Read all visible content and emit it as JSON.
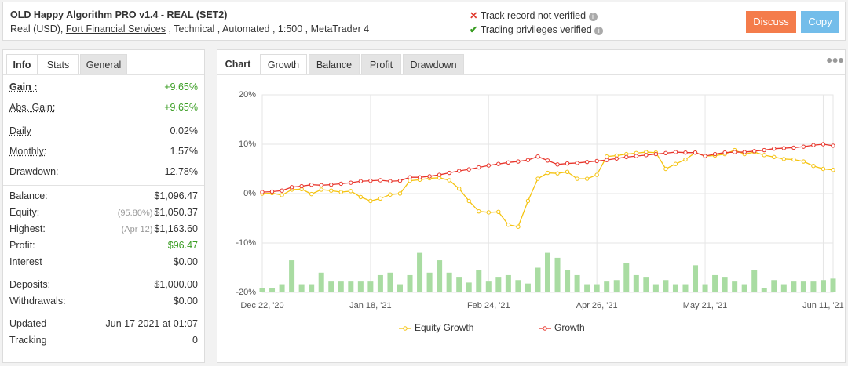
{
  "header": {
    "title": "OLD Happy Algorithm PRO v1.4 - REAL (SET2)",
    "account": [
      "Real (USD),",
      "Fort Financial Services",
      ", Technical , Automated , 1:500 , MetaTrader 4"
    ],
    "status": [
      "Track record not verified",
      "Trading privileges verified"
    ],
    "buttons": [
      "Discuss",
      "Copy"
    ]
  },
  "stats": {
    "tabs": [
      "Info",
      "Stats",
      "General"
    ],
    "groups": [
      [
        {
          "label": "Gain :",
          "value": "+9.65%",
          "color": "#3a9d23"
        },
        {
          "label": "Abs. Gain:",
          "value": "+9.65%",
          "color": "#3a9d23"
        }
      ],
      [
        {
          "label": "Daily",
          "value": "0.02%"
        },
        {
          "label": "Monthly:",
          "value": "1.57%"
        },
        {
          "label": "Drawdown:",
          "value": "12.78%"
        }
      ],
      [
        {
          "label": "Balance:",
          "value": "$1,096.47"
        },
        {
          "label": "Equity:",
          "note": "(95.80%)",
          "value": "$1,050.37"
        },
        {
          "label": "Highest:",
          "note": "(Apr 12)",
          "value": "$1,163.60"
        },
        {
          "label": "Profit:",
          "value": "$96.47",
          "color": "#3a9d23"
        },
        {
          "label": "Interest",
          "value": "$0.00"
        }
      ],
      [
        {
          "label": "Deposits:",
          "value": "$1,000.00"
        },
        {
          "label": "Withdrawals:",
          "value": "$0.00"
        }
      ],
      [
        {
          "label": "Updated",
          "value": "Jun 17 2021 at 01:07"
        },
        {
          "label": "Tracking",
          "value": "0"
        }
      ]
    ]
  },
  "chart_tabs": [
    "Chart",
    "Growth",
    "Balance",
    "Profit",
    "Drawdown"
  ],
  "chart_data": {
    "type": "line",
    "categories": [
      "Dec 22, '20",
      null,
      null,
      null,
      null,
      null,
      null,
      null,
      null,
      null,
      null,
      "Jan 18, '21",
      null,
      null,
      null,
      null,
      null,
      null,
      null,
      null,
      null,
      null,
      null,
      "Feb 24, '21",
      null,
      null,
      null,
      null,
      null,
      null,
      null,
      null,
      null,
      null,
      "Apr 26, '21",
      null,
      null,
      null,
      null,
      null,
      null,
      null,
      null,
      null,
      null,
      "May 21, '21",
      null,
      null,
      null,
      null,
      null,
      null,
      null,
      null,
      null,
      null,
      null,
      "Jun 11, '21",
      null
    ],
    "ylim": [
      -20,
      20
    ],
    "yticks": [
      {
        "value": -20,
        "label": "-20%"
      },
      {
        "value": -10,
        "label": "-10%"
      },
      {
        "value": 0,
        "label": "0%"
      },
      {
        "value": 10,
        "label": "10%"
      },
      {
        "value": 20,
        "label": "20%"
      }
    ],
    "grid": true,
    "series": [
      {
        "name": "Equity Growth",
        "color": "#f5c30f",
        "values": [
          0.0,
          0.1,
          -0.3,
          0.8,
          0.9,
          -0.1,
          0.8,
          0.6,
          0.3,
          0.5,
          -0.7,
          -1.5,
          -1.0,
          -0.2,
          0.0,
          2.6,
          2.8,
          3.1,
          3.2,
          2.7,
          1.0,
          -1.5,
          -3.6,
          -3.8,
          -3.7,
          -6.3,
          -6.7,
          -1.5,
          3.0,
          4.2,
          4.1,
          4.4,
          3.0,
          3.0,
          3.8,
          7.5,
          7.7,
          8.0,
          8.2,
          8.4,
          8.3,
          5.0,
          6.0,
          6.9,
          8.3,
          7.6,
          7.7,
          8.0,
          8.8,
          8.0,
          8.4,
          7.8,
          7.4,
          7.0,
          6.9,
          6.5,
          5.6,
          5.0,
          4.8
        ]
      },
      {
        "name": "Growth",
        "color": "#e8352b",
        "values": [
          0.3,
          0.4,
          0.6,
          1.3,
          1.5,
          1.8,
          1.7,
          1.8,
          2.0,
          2.2,
          2.5,
          2.6,
          2.7,
          2.5,
          2.6,
          3.3,
          3.3,
          3.5,
          3.8,
          4.2,
          4.6,
          4.9,
          5.3,
          5.7,
          6.0,
          6.3,
          6.5,
          6.8,
          7.5,
          6.7,
          5.9,
          6.1,
          6.2,
          6.4,
          6.6,
          6.8,
          7.1,
          7.4,
          7.6,
          7.8,
          8.0,
          8.2,
          8.4,
          8.3,
          8.3,
          7.6,
          8.0,
          8.3,
          8.4,
          8.4,
          8.6,
          8.8,
          9.1,
          9.2,
          9.3,
          9.5,
          9.8,
          10.0,
          9.7
        ]
      }
    ],
    "bars": {
      "color": "#a9dca2",
      "values": [
        -19.2,
        -19.2,
        -18.5,
        -13.5,
        -18.5,
        -18.5,
        -16,
        -17.8,
        -17.8,
        -17.8,
        -17.8,
        -17.8,
        -16.5,
        -16,
        -18.5,
        -16.5,
        -12,
        -16,
        -13.5,
        -16,
        -17,
        -18,
        -15.5,
        -17.8,
        -17,
        -16.5,
        -17.5,
        -18.2,
        -15,
        -12,
        -13,
        -15.5,
        -16.5,
        -18.5,
        -18.5,
        -17.8,
        -17.5,
        -14,
        -16.5,
        -17,
        -18.5,
        -17.5,
        -18.5,
        -18.5,
        -14.5,
        -18.5,
        -16.5,
        -17,
        -17.8,
        -18.5,
        -15.5,
        -19.2,
        -17.5,
        -18.5,
        -17.8,
        -17.8,
        -17.8,
        -17.5,
        -17.2
      ]
    }
  }
}
